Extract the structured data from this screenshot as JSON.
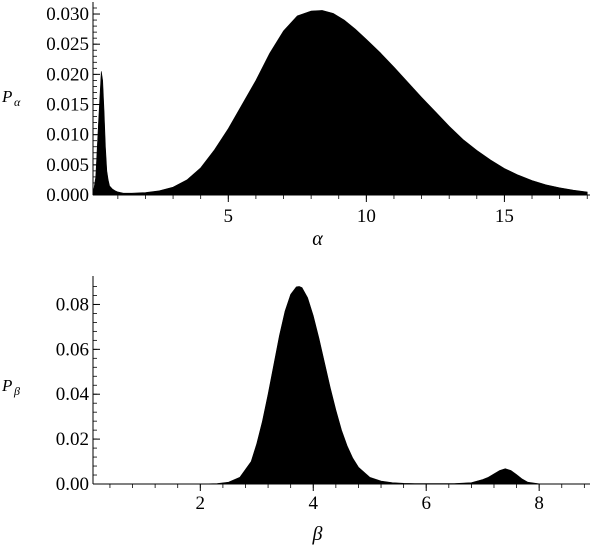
{
  "chart_data": [
    {
      "type": "area",
      "xlabel": "α",
      "ylabel": "P",
      "ylabel_sub": "α",
      "xlim": [
        0.1,
        18.1
      ],
      "ylim": [
        0,
        0.031
      ],
      "xticks": [
        "5",
        "10",
        "15"
      ],
      "xtick_values": [
        5,
        10,
        15
      ],
      "yticks": [
        "0.000",
        "0.005",
        "0.010",
        "0.015",
        "0.020",
        "0.025",
        "0.030"
      ],
      "ytick_values": [
        0,
        0.005,
        0.01,
        0.015,
        0.02,
        0.025,
        0.03
      ],
      "grid": false,
      "fill_color": "#000000",
      "series": [
        {
          "x": [
            0.1,
            0.2,
            0.3,
            0.4,
            0.45,
            0.5,
            0.55,
            0.6,
            0.65,
            0.7,
            0.8,
            0.9,
            1.0,
            1.2,
            1.5,
            2.0,
            2.5,
            3.0,
            3.5,
            4.0,
            4.5,
            5.0,
            5.5,
            6.0,
            6.5,
            7.0,
            7.5,
            8.0,
            8.4,
            8.8,
            9.2,
            9.6,
            10.0,
            10.5,
            11.0,
            11.5,
            12.0,
            12.5,
            13.0,
            13.5,
            14.0,
            14.5,
            15.0,
            15.5,
            16.0,
            16.5,
            17.0,
            17.5,
            18.0
          ],
          "values": [
            0.0,
            0.003,
            0.012,
            0.0205,
            0.019,
            0.014,
            0.008,
            0.004,
            0.0025,
            0.0015,
            0.001,
            0.0007,
            0.0005,
            0.0003,
            0.0003,
            0.0004,
            0.0007,
            0.0013,
            0.0025,
            0.0045,
            0.0075,
            0.011,
            0.015,
            0.019,
            0.0235,
            0.0272,
            0.0297,
            0.0305,
            0.0306,
            0.0301,
            0.029,
            0.0275,
            0.0258,
            0.0236,
            0.0212,
            0.0187,
            0.0162,
            0.0138,
            0.0114,
            0.0092,
            0.0074,
            0.0058,
            0.0044,
            0.0033,
            0.0024,
            0.0017,
            0.0012,
            0.0008,
            0.0005
          ]
        }
      ]
    },
    {
      "type": "area",
      "xlabel": "β",
      "ylabel": "P",
      "ylabel_sub": "β",
      "xlim": [
        0.1,
        8.9
      ],
      "ylim": [
        0,
        0.09
      ],
      "xticks": [
        "2",
        "4",
        "6",
        "8"
      ],
      "xtick_values": [
        2,
        4,
        6,
        8
      ],
      "yticks": [
        "0.00",
        "0.02",
        "0.04",
        "0.06",
        "0.08"
      ],
      "ytick_values": [
        0,
        0.02,
        0.04,
        0.06,
        0.08
      ],
      "grid": false,
      "fill_color": "#000000",
      "series": [
        {
          "x": [
            0.1,
            1.0,
            2.0,
            2.3,
            2.5,
            2.7,
            2.9,
            3.0,
            3.1,
            3.2,
            3.3,
            3.4,
            3.5,
            3.6,
            3.7,
            3.75,
            3.8,
            3.9,
            4.0,
            4.1,
            4.2,
            4.3,
            4.4,
            4.5,
            4.6,
            4.7,
            4.8,
            5.0,
            5.2,
            5.4,
            5.6,
            5.8,
            6.0,
            6.5,
            6.8,
            7.0,
            7.1,
            7.2,
            7.3,
            7.4,
            7.5,
            7.6,
            7.7,
            7.8,
            8.0,
            8.5,
            8.9
          ],
          "values": [
            0.0,
            0.0,
            0.0,
            0.0002,
            0.0008,
            0.003,
            0.01,
            0.018,
            0.028,
            0.04,
            0.053,
            0.066,
            0.077,
            0.0845,
            0.0878,
            0.088,
            0.0875,
            0.083,
            0.075,
            0.065,
            0.054,
            0.043,
            0.033,
            0.024,
            0.017,
            0.0115,
            0.0075,
            0.003,
            0.0013,
            0.0006,
            0.0003,
            0.0002,
            0.0002,
            0.0002,
            0.0006,
            0.002,
            0.003,
            0.0045,
            0.006,
            0.0068,
            0.006,
            0.0042,
            0.0022,
            0.0008,
            0.0001,
            0.0,
            0.0
          ]
        }
      ]
    }
  ]
}
